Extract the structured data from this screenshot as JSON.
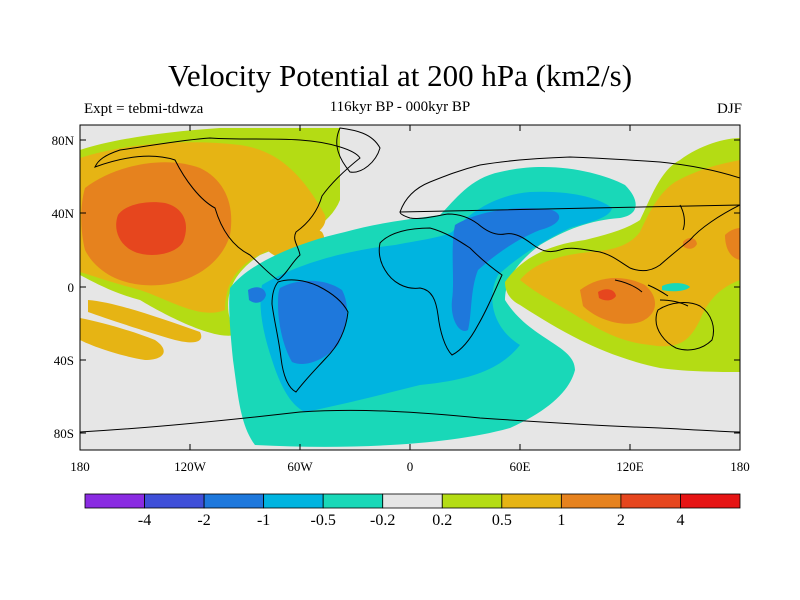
{
  "title": "Velocity Potential at 200 hPa (km2/s)",
  "subtitle_left": "Expt = tebmi-tdwza",
  "subtitle_center": "116kyr BP - 000kyr BP",
  "subtitle_right": "DJF",
  "lat_labels": [
    "80N",
    "40N",
    "0",
    "40S",
    "80S"
  ],
  "lon_labels": [
    "180",
    "120W",
    "60W",
    "0",
    "60E",
    "120E",
    "180"
  ],
  "colorbar": {
    "labels": [
      "-4",
      "-2",
      "-1",
      "-0.5",
      "-0.2",
      "0.2",
      "0.5",
      "1",
      "2",
      "4"
    ],
    "colors": [
      "#8a2be2",
      "#3f4fd8",
      "#1e78dc",
      "#00b4e0",
      "#19d8b8",
      "#e6e6e6",
      "#b4dc14",
      "#e6b414",
      "#e6821e",
      "#e6461e",
      "#e61414"
    ]
  },
  "colors": {
    "background": "#e6e6e6",
    "coast": "#000000"
  }
}
